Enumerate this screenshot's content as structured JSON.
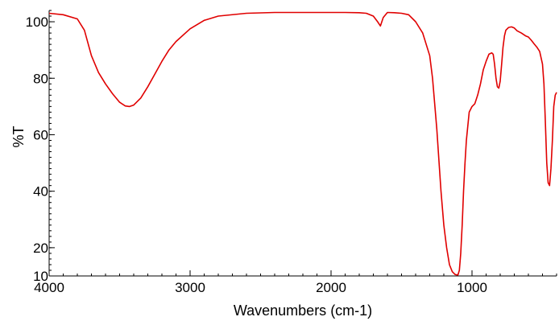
{
  "chart_data": {
    "type": "line",
    "title": "",
    "xlabel": "Wavenumbers (cm-1)",
    "ylabel": "%T",
    "xlim": [
      4000,
      400
    ],
    "ylim": [
      10,
      104
    ],
    "x_reversed": true,
    "grid": false,
    "x_ticks": [
      4000,
      3000,
      2000,
      1000
    ],
    "x_tick_labels": [
      "4000",
      "3000",
      "2000",
      "1000"
    ],
    "y_ticks": [
      10,
      20,
      40,
      60,
      80,
      100
    ],
    "y_tick_labels": [
      "10",
      "20",
      "40",
      "60",
      "80",
      "100"
    ],
    "series": [
      {
        "color": "#e00000",
        "x": [
          4000,
          3900,
          3800,
          3750,
          3700,
          3650,
          3600,
          3550,
          3500,
          3460,
          3430,
          3400,
          3350,
          3300,
          3250,
          3200,
          3150,
          3100,
          3000,
          2900,
          2800,
          2600,
          2400,
          2200,
          2000,
          1900,
          1800,
          1750,
          1700,
          1670,
          1650,
          1630,
          1600,
          1550,
          1500,
          1450,
          1400,
          1350,
          1300,
          1280,
          1250,
          1220,
          1200,
          1180,
          1160,
          1140,
          1120,
          1100,
          1090,
          1080,
          1070,
          1060,
          1050,
          1040,
          1020,
          1000,
          980,
          960,
          940,
          920,
          900,
          880,
          860,
          850,
          840,
          830,
          820,
          810,
          800,
          790,
          780,
          770,
          760,
          740,
          720,
          700,
          680,
          650,
          620,
          600,
          580,
          560,
          540,
          520,
          500,
          490,
          480,
          470,
          460,
          450,
          440,
          430,
          420,
          410,
          400
        ],
        "y": [
          103,
          102.5,
          101,
          97,
          88,
          82,
          78,
          74.5,
          71.5,
          70.2,
          70,
          70.5,
          73,
          77,
          81.5,
          86,
          90,
          93,
          97.5,
          100.5,
          102,
          103,
          103.3,
          103.3,
          103.3,
          103.3,
          103.2,
          103,
          102,
          100,
          98.5,
          101.5,
          103.3,
          103.2,
          103,
          102.5,
          100,
          96,
          88,
          80,
          62,
          40,
          28,
          20,
          14,
          11.5,
          10.5,
          10.3,
          12,
          18,
          28,
          40,
          50,
          58,
          68,
          70,
          71,
          74,
          78,
          83,
          86,
          88.5,
          89,
          88.5,
          85,
          80,
          77,
          76.5,
          79,
          85,
          91,
          95,
          97,
          98,
          98.2,
          97.8,
          96.8,
          96,
          95,
          94.6,
          93.5,
          92.2,
          91,
          89.5,
          85,
          78,
          65,
          50,
          43,
          42,
          48,
          58,
          70,
          74,
          75
        ]
      }
    ]
  }
}
